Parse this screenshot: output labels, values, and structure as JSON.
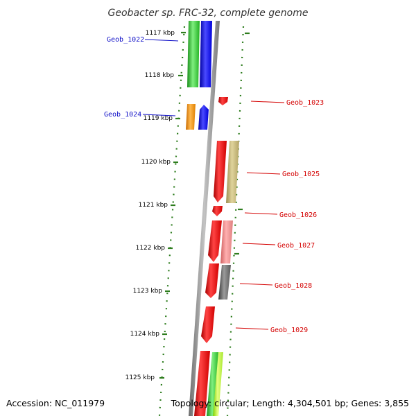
{
  "title": "Geobacter sp. FRC-32, complete genome",
  "accession": "Accession: NC_011979",
  "summary": "Topology: circular; Length: 4,304,501 bp; Genes: 3,855",
  "colors": {
    "backbone": "#8a8a8a",
    "tick": "#2e7d1e",
    "label_left": "#1010c8",
    "label_right": "#d40000"
  },
  "scale_labels": [
    "1117 kbp",
    "1118 kbp",
    "1119 kbp",
    "1120 kbp",
    "1121 kbp",
    "1122 kbp",
    "1123 kbp",
    "1124 kbp",
    "1125 kbp"
  ],
  "gene_labels_left": [
    "Geob_1022",
    "Geob_1024"
  ],
  "gene_labels_right": [
    "Geob_1023",
    "Geob_1025",
    "Geob_1026",
    "Geob_1027",
    "Geob_1028",
    "Geob_1029"
  ]
}
